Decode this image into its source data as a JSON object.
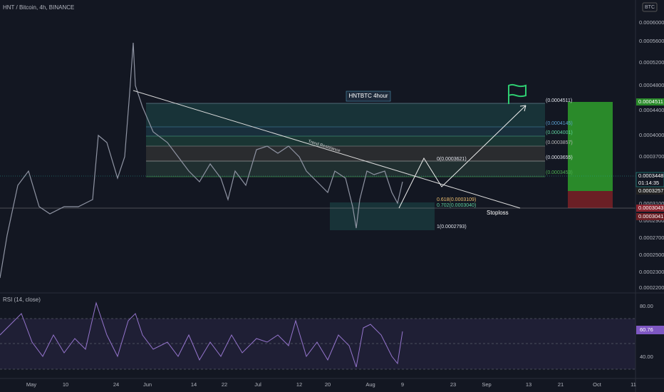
{
  "header": {
    "symbol": "HNT / Bitcoin, 4h, BINANCE",
    "currency": "BTC"
  },
  "price_axis": [
    "0.0006000",
    "0.0005600",
    "0.0005200",
    "0.0004800",
    "0.0004400",
    "0.0004000",
    "0.0003700",
    "0.0003100",
    "0.0002900",
    "0.0002700",
    "0.0002500",
    "0.0002300",
    "0.0002200"
  ],
  "price_tags": {
    "target": "0.0004511",
    "last": "0.0003448",
    "countdown": "01:14:35",
    "entry": "0.0003257",
    "stop": "0.0003043",
    "stop2": "0.0003041"
  },
  "rsi": {
    "title": "RSI (14, close)",
    "upper": "80.00",
    "value": "60.76",
    "lower": "40.00"
  },
  "time_axis": [
    "May",
    "10",
    "24",
    "Jun",
    "14",
    "22",
    "Jul",
    "12",
    "20",
    "Aug",
    "9",
    "23",
    "Sep",
    "13",
    "21",
    "Oct",
    "11"
  ],
  "annotations": {
    "box_title": "HNTBTC 4hour",
    "trend": "Trend Resistance",
    "stoploss": "Stoploss"
  },
  "fib": [
    "0(0.0003621)",
    "0.618(0.0003109)",
    "0.702(0.0003040)",
    "1(0.0002793)"
  ],
  "levels": [
    "(0.0004511)",
    "(0.0004145)",
    "(0.0004001)",
    "(0.0003857)",
    "(0.0003655)",
    "(0.0003453)"
  ]
}
